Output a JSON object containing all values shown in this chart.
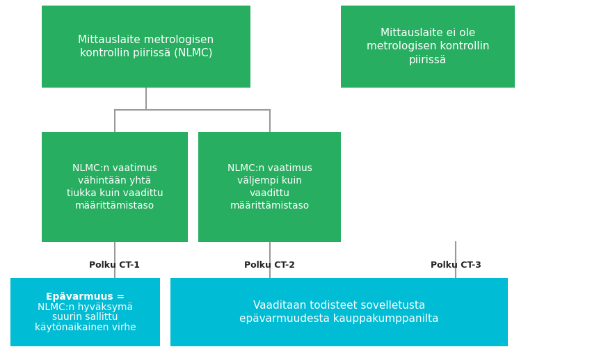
{
  "bg_color": "#ffffff",
  "green_color": "#27ae60",
  "cyan_color": "#00bcd4",
  "white_text": "#ffffff",
  "line_color": "#999999",
  "box1_text": "Mittauslaite metrologisen\nkontrollin piirissä (NLMC)",
  "box2_text": "Mittauslaite ei ole\nmetrologisen kontrollin\npiirissä",
  "box3_text": "NLMC:n vaatimus\nvähintään yhtä\ntiukka kuin vaadittu\nmäärittämistaso",
  "box4_text": "NLMC:n vaatimus\nväljempi kuin\nvaadittu\nmäärittämistaso",
  "box5_line1": "Epävarmuus =",
  "box5_rest": "NLMC:n hyväksymä\nsuurin sallittu\nkäytönaikainen virhe",
  "box6_text": "Vaaditaan todisteet sovelletusta\nepävarmuudesta kauppakumppanilta",
  "label1": "Polku CT-1",
  "label2": "Polku CT-2",
  "label3": "Polku CT-3",
  "figsize": [
    8.74,
    5.12
  ],
  "dpi": 100
}
